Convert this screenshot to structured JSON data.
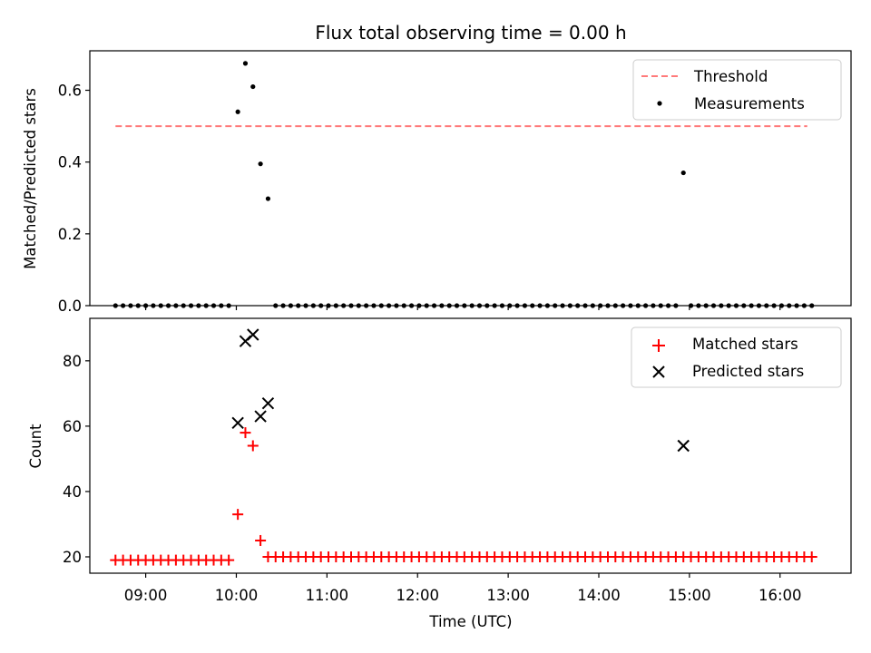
{
  "chart_data": {
    "title": "Flux total observing time = 0.00 h",
    "xlabel": "Time (UTC)",
    "x_unit": "hours UTC",
    "xlim": [
      "08:23",
      "16:47"
    ],
    "x_tick_labels": [
      "09:00",
      "10:00",
      "11:00",
      "12:00",
      "13:00",
      "14:00",
      "15:00",
      "16:00"
    ],
    "x_ticks": [
      "09:00",
      "10:00",
      "11:00",
      "12:00",
      "13:00",
      "14:00",
      "15:00",
      "16:00"
    ],
    "panels": [
      {
        "type": "scatter",
        "ylabel": "Matched/Predicted stars",
        "ylim": [
          0,
          0.71
        ],
        "y_ticks": [
          "0.0",
          "0.2",
          "0.4",
          "0.6"
        ],
        "legend": {
          "placement": "top-right",
          "entries": [
            "Threshold",
            "Measurements"
          ]
        },
        "threshold": {
          "name": "Threshold",
          "value": 0.5,
          "x_range": [
            "08:40",
            "16:18"
          ],
          "color": "#ff7a7a"
        },
        "series": [
          {
            "name": "Measurements",
            "color": "#000000",
            "points": [
              [
                "08:40",
                0
              ],
              [
                "08:45",
                0
              ],
              [
                "08:50",
                0
              ],
              [
                "08:55",
                0
              ],
              [
                "09:00",
                0
              ],
              [
                "09:05",
                0
              ],
              [
                "09:10",
                0
              ],
              [
                "09:15",
                0
              ],
              [
                "09:20",
                0
              ],
              [
                "09:25",
                0
              ],
              [
                "09:30",
                0
              ],
              [
                "09:35",
                0
              ],
              [
                "09:40",
                0
              ],
              [
                "09:45",
                0
              ],
              [
                "09:50",
                0
              ],
              [
                "09:55",
                0
              ],
              [
                "10:01",
                0.54
              ],
              [
                "10:06",
                0.675
              ],
              [
                "10:11",
                0.61
              ],
              [
                "10:16",
                0.395
              ],
              [
                "10:21",
                0.298
              ],
              [
                "10:26",
                0
              ],
              [
                "10:31",
                0
              ],
              [
                "10:36",
                0
              ],
              [
                "10:41",
                0
              ],
              [
                "10:46",
                0
              ],
              [
                "10:51",
                0
              ],
              [
                "10:56",
                0
              ],
              [
                "11:01",
                0
              ],
              [
                "11:06",
                0
              ],
              [
                "11:11",
                0
              ],
              [
                "11:16",
                0
              ],
              [
                "11:21",
                0
              ],
              [
                "11:26",
                0
              ],
              [
                "11:31",
                0
              ],
              [
                "11:36",
                0
              ],
              [
                "11:41",
                0
              ],
              [
                "11:46",
                0
              ],
              [
                "11:51",
                0
              ],
              [
                "11:56",
                0
              ],
              [
                "12:01",
                0
              ],
              [
                "12:06",
                0
              ],
              [
                "12:11",
                0
              ],
              [
                "12:16",
                0
              ],
              [
                "12:21",
                0
              ],
              [
                "12:26",
                0
              ],
              [
                "12:31",
                0
              ],
              [
                "12:36",
                0
              ],
              [
                "12:41",
                0
              ],
              [
                "12:46",
                0
              ],
              [
                "12:51",
                0
              ],
              [
                "12:56",
                0
              ],
              [
                "13:01",
                0
              ],
              [
                "13:06",
                0
              ],
              [
                "13:11",
                0
              ],
              [
                "13:16",
                0
              ],
              [
                "13:21",
                0
              ],
              [
                "13:26",
                0
              ],
              [
                "13:31",
                0
              ],
              [
                "13:36",
                0
              ],
              [
                "13:41",
                0
              ],
              [
                "13:46",
                0
              ],
              [
                "13:51",
                0
              ],
              [
                "13:56",
                0
              ],
              [
                "14:01",
                0
              ],
              [
                "14:06",
                0
              ],
              [
                "14:11",
                0
              ],
              [
                "14:16",
                0
              ],
              [
                "14:21",
                0
              ],
              [
                "14:26",
                0
              ],
              [
                "14:31",
                0
              ],
              [
                "14:36",
                0
              ],
              [
                "14:41",
                0
              ],
              [
                "14:46",
                0
              ],
              [
                "14:51",
                0
              ],
              [
                "14:56",
                0.37
              ],
              [
                "15:01",
                0
              ],
              [
                "15:06",
                0
              ],
              [
                "15:11",
                0
              ],
              [
                "15:16",
                0
              ],
              [
                "15:21",
                0
              ],
              [
                "15:26",
                0
              ],
              [
                "15:31",
                0
              ],
              [
                "15:36",
                0
              ],
              [
                "15:41",
                0
              ],
              [
                "15:46",
                0
              ],
              [
                "15:51",
                0
              ],
              [
                "15:56",
                0
              ],
              [
                "16:01",
                0
              ],
              [
                "16:06",
                0
              ],
              [
                "16:11",
                0
              ],
              [
                "16:16",
                0
              ],
              [
                "16:21",
                0
              ]
            ]
          }
        ]
      },
      {
        "type": "scatter",
        "ylabel": "Count",
        "ylim": [
          15,
          93
        ],
        "y_ticks": [
          "20",
          "40",
          "60",
          "80"
        ],
        "legend": {
          "placement": "top-right",
          "entries": [
            "Matched stars",
            "Predicted stars"
          ]
        },
        "series": [
          {
            "name": "Matched stars",
            "color": "#ff0000",
            "marker": "plus",
            "points": [
              [
                "08:40",
                19
              ],
              [
                "08:45",
                19
              ],
              [
                "08:50",
                19
              ],
              [
                "08:55",
                19
              ],
              [
                "09:00",
                19
              ],
              [
                "09:05",
                19
              ],
              [
                "09:10",
                19
              ],
              [
                "09:15",
                19
              ],
              [
                "09:20",
                19
              ],
              [
                "09:25",
                19
              ],
              [
                "09:30",
                19
              ],
              [
                "09:35",
                19
              ],
              [
                "09:40",
                19
              ],
              [
                "09:45",
                19
              ],
              [
                "09:50",
                19
              ],
              [
                "09:55",
                19
              ],
              [
                "10:01",
                33
              ],
              [
                "10:06",
                58
              ],
              [
                "10:11",
                54
              ],
              [
                "10:16",
                25
              ],
              [
                "10:21",
                20
              ],
              [
                "10:26",
                20
              ],
              [
                "10:31",
                20
              ],
              [
                "10:36",
                20
              ],
              [
                "10:41",
                20
              ],
              [
                "10:46",
                20
              ],
              [
                "10:51",
                20
              ],
              [
                "10:56",
                20
              ],
              [
                "11:01",
                20
              ],
              [
                "11:06",
                20
              ],
              [
                "11:11",
                20
              ],
              [
                "11:16",
                20
              ],
              [
                "11:21",
                20
              ],
              [
                "11:26",
                20
              ],
              [
                "11:31",
                20
              ],
              [
                "11:36",
                20
              ],
              [
                "11:41",
                20
              ],
              [
                "11:46",
                20
              ],
              [
                "11:51",
                20
              ],
              [
                "11:56",
                20
              ],
              [
                "12:01",
                20
              ],
              [
                "12:06",
                20
              ],
              [
                "12:11",
                20
              ],
              [
                "12:16",
                20
              ],
              [
                "12:21",
                20
              ],
              [
                "12:26",
                20
              ],
              [
                "12:31",
                20
              ],
              [
                "12:36",
                20
              ],
              [
                "12:41",
                20
              ],
              [
                "12:46",
                20
              ],
              [
                "12:51",
                20
              ],
              [
                "12:56",
                20
              ],
              [
                "13:01",
                20
              ],
              [
                "13:06",
                20
              ],
              [
                "13:11",
                20
              ],
              [
                "13:16",
                20
              ],
              [
                "13:21",
                20
              ],
              [
                "13:26",
                20
              ],
              [
                "13:31",
                20
              ],
              [
                "13:36",
                20
              ],
              [
                "13:41",
                20
              ],
              [
                "13:46",
                20
              ],
              [
                "13:51",
                20
              ],
              [
                "13:56",
                20
              ],
              [
                "14:01",
                20
              ],
              [
                "14:06",
                20
              ],
              [
                "14:11",
                20
              ],
              [
                "14:16",
                20
              ],
              [
                "14:21",
                20
              ],
              [
                "14:26",
                20
              ],
              [
                "14:31",
                20
              ],
              [
                "14:36",
                20
              ],
              [
                "14:41",
                20
              ],
              [
                "14:46",
                20
              ],
              [
                "14:51",
                20
              ],
              [
                "14:56",
                20
              ],
              [
                "15:01",
                20
              ],
              [
                "15:06",
                20
              ],
              [
                "15:11",
                20
              ],
              [
                "15:16",
                20
              ],
              [
                "15:21",
                20
              ],
              [
                "15:26",
                20
              ],
              [
                "15:31",
                20
              ],
              [
                "15:36",
                20
              ],
              [
                "15:41",
                20
              ],
              [
                "15:46",
                20
              ],
              [
                "15:51",
                20
              ],
              [
                "15:56",
                20
              ],
              [
                "16:01",
                20
              ],
              [
                "16:06",
                20
              ],
              [
                "16:11",
                20
              ],
              [
                "16:16",
                20
              ],
              [
                "16:21",
                20
              ]
            ]
          },
          {
            "name": "Predicted stars",
            "color": "#000000",
            "marker": "x",
            "points": [
              [
                "10:01",
                61
              ],
              [
                "10:06",
                86
              ],
              [
                "10:11",
                88
              ],
              [
                "10:16",
                63
              ],
              [
                "10:21",
                67
              ],
              [
                "14:56",
                54
              ]
            ]
          }
        ]
      }
    ]
  }
}
